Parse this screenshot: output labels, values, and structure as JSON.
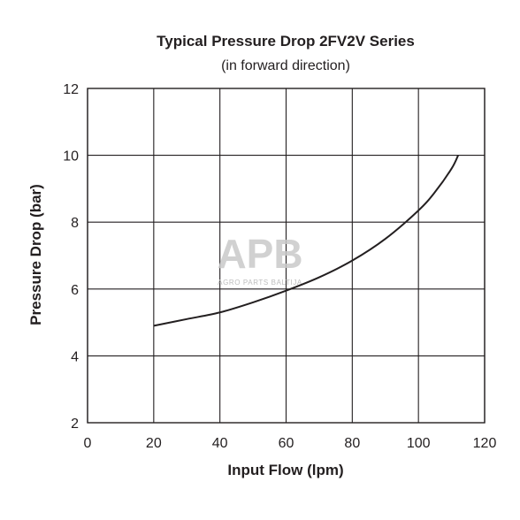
{
  "chart_data": {
    "type": "line",
    "title": "Typical Pressure Drop 2FV2V Series",
    "subtitle": "(in forward direction)",
    "xlabel": "Input Flow (lpm)",
    "ylabel": "Pressure Drop (bar)",
    "xlim": [
      0,
      120
    ],
    "ylim": [
      2,
      12
    ],
    "xticks": [
      0,
      20,
      40,
      60,
      80,
      100,
      120
    ],
    "yticks": [
      2,
      4,
      6,
      8,
      10,
      12
    ],
    "grid": true,
    "series": [
      {
        "x": [
          20,
          30,
          40,
          50,
          60,
          70,
          80,
          90,
          100,
          105,
          110,
          112
        ],
        "y": [
          4.9,
          5.1,
          5.3,
          5.6,
          5.95,
          6.35,
          6.85,
          7.5,
          8.35,
          8.9,
          9.6,
          10.0
        ]
      }
    ],
    "line_color": "#231f20"
  },
  "watermark": {
    "logo_text": "APB",
    "tagline": "AGRO PARTS BALTIJA"
  }
}
